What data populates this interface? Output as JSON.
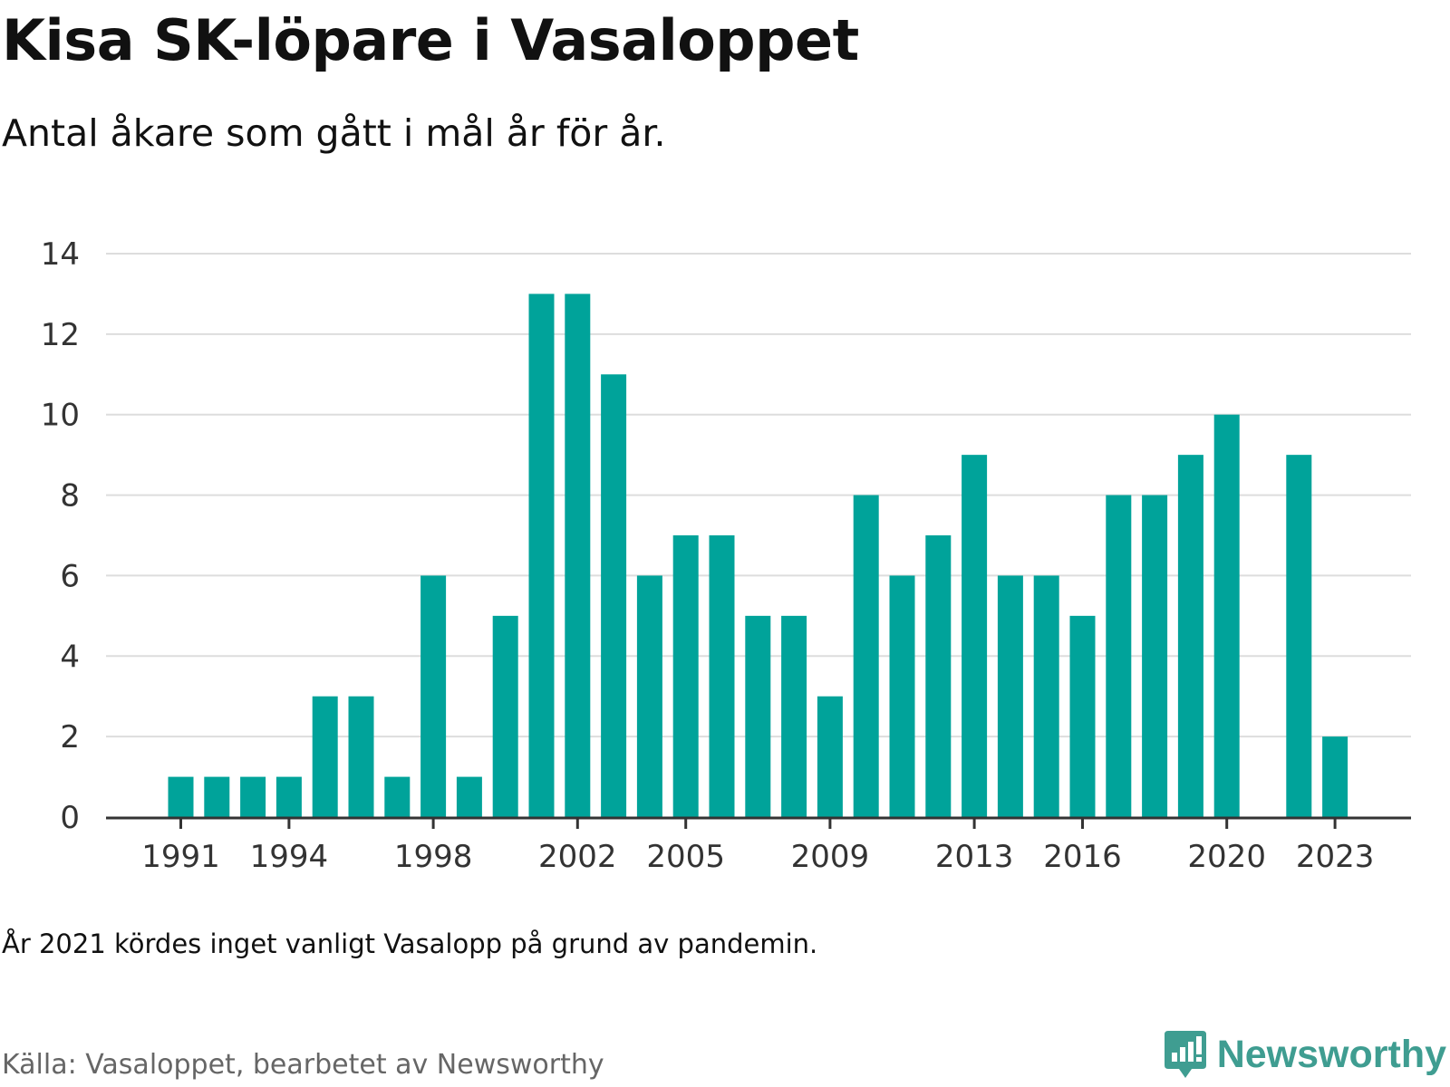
{
  "title": "Kisa SK-löpare i Vasaloppet",
  "subtitle": "Antal åkare som gått i mål år för år.",
  "note": "År 2021 kördes inget vanligt Vasalopp på grund av pandemin.",
  "source": "Källa: Vasaloppet, bearbetet av Newsworthy",
  "brand": {
    "name": "Newsworthy",
    "icon": "newsworthy-logo-icon"
  },
  "colors": {
    "bar": "#00a39a",
    "grid": "#dddddd",
    "axis": "#333333",
    "brand": "#3f9d91"
  },
  "chart_data": {
    "type": "bar",
    "categories": [
      1991,
      1992,
      1993,
      1994,
      1995,
      1996,
      1997,
      1998,
      1999,
      2000,
      2001,
      2002,
      2003,
      2004,
      2005,
      2006,
      2007,
      2008,
      2009,
      2010,
      2011,
      2012,
      2013,
      2014,
      2015,
      2016,
      2017,
      2018,
      2019,
      2020,
      2021,
      2022,
      2023
    ],
    "values": [
      1,
      1,
      1,
      1,
      3,
      3,
      1,
      6,
      1,
      5,
      13,
      13,
      11,
      6,
      7,
      7,
      5,
      5,
      3,
      8,
      6,
      7,
      9,
      6,
      6,
      5,
      8,
      8,
      9,
      10,
      null,
      9,
      2
    ],
    "x_tick_labels": [
      "1991",
      "1994",
      "1998",
      "2002",
      "2005",
      "2009",
      "2013",
      "2016",
      "2020",
      "2023"
    ],
    "y_ticks": [
      0,
      2,
      4,
      6,
      8,
      10,
      12,
      14
    ],
    "ylim": [
      0,
      14
    ],
    "xlabel": "",
    "ylabel": "",
    "grid": true
  }
}
